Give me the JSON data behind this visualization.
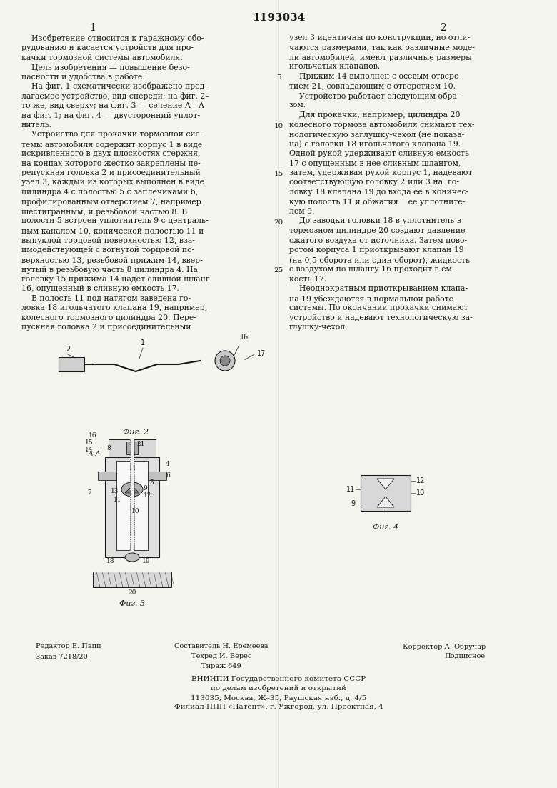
{
  "patent_number": "1193034",
  "col1_number": "1",
  "col2_number": "2",
  "bg_color": "#f5f5f0",
  "text_color": "#1a1a1a",
  "col1_text": [
    "    Изобретение относится к гаражному обо-",
    "рудованию и касается устройств для про-",
    "качки тормозной системы автомобиля.",
    "    Цель изобретения — повышение безо-",
    "пасности и удобства в работе.",
    "    На фиг. 1 схематически изображено пред-",
    "лагаемое устройство, вид спереди; на фиг. 2–",
    "то же, вид сверху; на фиг. 3 — сечение А—А",
    "на фиг. 1; на фиг. 4 — двусторонний уплот-",
    "нитель.",
    "    Устройство для прокачки тормозной сис-",
    "темы автомобиля содержит корпус 1 в виде",
    "искривленного в двух плоскостях стержня,",
    "на концах которого жестко закреплены пе-",
    "репускная головка 2 и присоединительный",
    "узел 3, каждый из которых выполнен в виде",
    "цилиндра 4 с полостью 5 с заплечиками 6,",
    "профилированным отверстием 7, например",
    "шестигранным, и резьбовой частью 8. В",
    "полости 5 встроен уплотнитель 9 с централь-",
    "ным каналом 10, конической полостью 11 и",
    "выпуклой торцовой поверхностью 12, вза-",
    "имодействующей с вогнутой торцовой по-",
    "верхностью 13, резьбовой прижим 14, ввер-",
    "нутый в резьбовую часть 8 цилиндра 4. На",
    "головку 15 прижима 14 надет сливной шланг",
    "16, опущенный в сливную емкость 17.",
    "    В полость 11 под натягом заведена го-",
    "ловка 18 игольчатого клапана 19, например,",
    "колесного тормозного цилиндра 20. Пере-",
    "пускная головка 2 и присоединительный"
  ],
  "col2_text": [
    "узел 3 идентичны по конструкции, но отли-",
    "чаются размерами, так как различные моде-",
    "ли автомобилей, имеют различные размеры",
    "игольчатых клапанов.",
    "    Прижим 14 выполнен с осевым отверс-",
    "тием 21, совпадающим с отверстием 10.",
    "    Устройство работает следующим обра-",
    "зом.",
    "    Для прокачки, например, цилиндра 20",
    "колесного тормоза автомобиля снимают тех-",
    "нологическую заглушку-чехол (не показа-",
    "на) с головки 18 игольчатого клапана 19.",
    "Одной рукой удерживают сливную емкость",
    "17 с опущенным в нее сливным шлангом,",
    "затем, удерживая рукой корпус 1, надевают",
    "соответствующую головку 2 или 3 на  го-",
    "ловку 18 клапана 19 до входа ее в коничес-",
    "кую полость 11 и обжатия    ее уплотните-",
    "лем 9.",
    "    До заводки головки 18 в уплотнитель в",
    "тормозном цилиндре 20 создают давление",
    "сжатого воздуха от источника. Затем пово-",
    "ротом корпуса 1 приоткрывают клапан 19",
    "(на 0,5 оборота или один оборот), жидкость",
    "с воздухом по шлангу 16 проходит в ем-",
    "кость 17.",
    "    Неоднократным приоткрыванием клапа-",
    "на 19 убеждаются в нормальной работе",
    "системы. По окончании прокачки снимают",
    "устройство и надевают технологическую за-",
    "глушку-чехол."
  ],
  "line_numbers_left": [
    "5",
    "10",
    "15",
    "20",
    "25"
  ],
  "fig2_caption": "Фиг. 2",
  "fig3_caption": "Фиг. 3",
  "fig4_caption": "Фиг. 4",
  "footer_left1": "Редактор Е. Папп",
  "footer_left2": "Заказ 7218/20",
  "footer_center1": "Составитель Н. Еремеева",
  "footer_center2": "Техред И. Верес",
  "footer_center3": "Тираж 649",
  "footer_right1": "Корректор А. Обручар",
  "footer_right2": "Подписное",
  "footer_vnipi1": "ВНИИПИ Государственного комитета СССР",
  "footer_vnipi2": "по делам изобретений и открытий",
  "footer_vnipi3": "113035, Москва, Ж–35, Раушская наб., д. 4/5",
  "footer_vnipi4": "Филиал ППП «Патент», г. Ужгород, ул. Проектная, 4"
}
